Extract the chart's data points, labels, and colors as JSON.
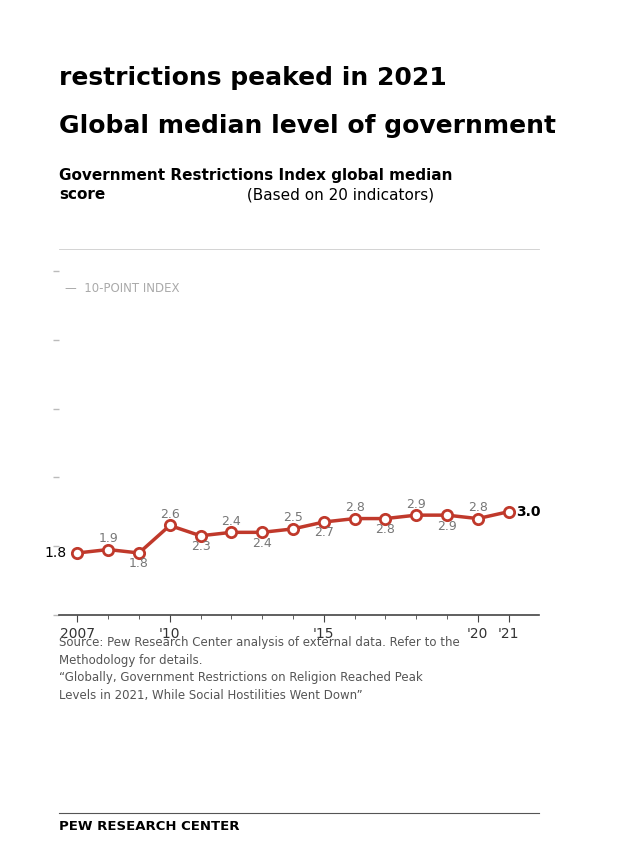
{
  "title_line1": "Global median level of government",
  "title_line2": "restrictions peaked in 2021",
  "subtitle_bold": "Government Restrictions Index global median\nscore",
  "subtitle_normal": " (Based on 20 indicators)",
  "index_label": "—  10-POINT INDEX",
  "years": [
    2007,
    2008,
    2009,
    2010,
    2011,
    2012,
    2013,
    2014,
    2015,
    2016,
    2017,
    2018,
    2019,
    2020,
    2021
  ],
  "values": [
    1.8,
    1.9,
    1.8,
    2.6,
    2.3,
    2.4,
    2.4,
    2.5,
    2.7,
    2.8,
    2.8,
    2.9,
    2.9,
    2.8,
    3.0
  ],
  "line_color": "#c0392b",
  "marker_face_color": "#ffffff",
  "marker_edge_color": "#c0392b",
  "ylim": [
    0,
    10
  ],
  "xlim": [
    2006.4,
    2022.0
  ],
  "xtick_labels": [
    "2007",
    "'10",
    "'15",
    "'20",
    "'21"
  ],
  "xtick_positions": [
    2007,
    2010,
    2015,
    2020,
    2021
  ],
  "source_text": "Source: Pew Research Center analysis of external data. Refer to the\nMethodology for details.\n“Globally, Government Restrictions on Religion Reached Peak\nLevels in 2021, While Social Hostilities Went Down”",
  "footer_text": "PEW RESEARCH CENTER",
  "background_color": "#ffffff",
  "label_color": "#777777",
  "title_color": "#000000",
  "label_offsets": {
    "2007": [
      -0.35,
      0.0,
      "right",
      "center"
    ],
    "2008": [
      0.0,
      0.13,
      "center",
      "bottom"
    ],
    "2009": [
      0.0,
      -0.13,
      "center",
      "top"
    ],
    "2010": [
      0.0,
      0.13,
      "center",
      "bottom"
    ],
    "2011": [
      0.0,
      -0.13,
      "center",
      "top"
    ],
    "2012": [
      0.0,
      0.13,
      "center",
      "bottom"
    ],
    "2013": [
      0.0,
      -0.13,
      "center",
      "top"
    ],
    "2014": [
      0.0,
      0.13,
      "center",
      "bottom"
    ],
    "2015": [
      0.0,
      -0.13,
      "center",
      "top"
    ],
    "2016": [
      0.0,
      0.13,
      "center",
      "bottom"
    ],
    "2017": [
      0.0,
      -0.13,
      "center",
      "top"
    ],
    "2018": [
      0.0,
      0.13,
      "center",
      "bottom"
    ],
    "2019": [
      0.0,
      -0.13,
      "center",
      "top"
    ],
    "2020": [
      0.0,
      0.13,
      "center",
      "bottom"
    ],
    "2021": [
      0.25,
      0.0,
      "left",
      "center"
    ]
  }
}
